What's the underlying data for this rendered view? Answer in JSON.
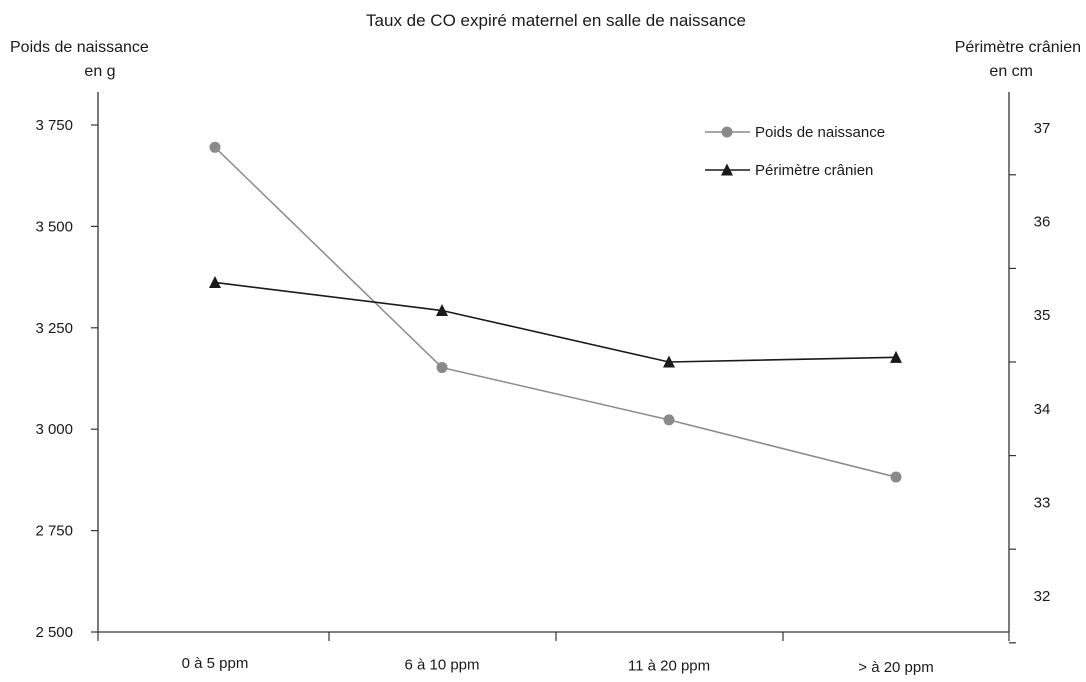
{
  "chart_data": {
    "type": "line",
    "title": "Taux de CO expiré maternel en salle de naissance",
    "ylabel_left": [
      "Poids de naissance",
      "en g"
    ],
    "ylabel_right": [
      "Périmètre crânien",
      "en cm"
    ],
    "categories": [
      "0 à 5 ppm",
      "6 à 10 ppm",
      "11 à 20 ppm",
      "> à 20 ppm"
    ],
    "y_left": {
      "min": 2500,
      "max": 3750,
      "ticks": [
        2500,
        2750,
        3000,
        3250,
        3500,
        3750
      ],
      "tick_labels": [
        "2 500",
        "2 750",
        "3 000",
        "3 250",
        "3 500",
        "3 750"
      ]
    },
    "y_right": {
      "min": 32,
      "max": 37,
      "ticks": [
        32,
        33,
        34,
        35,
        36,
        37
      ],
      "tick_labels": [
        "32",
        "33",
        "34",
        "35",
        "36",
        "37"
      ]
    },
    "series": [
      {
        "name": "Poids de naissance",
        "axis": "left",
        "marker": "circle",
        "color": "#8a8a8a",
        "values": [
          3695,
          3152,
          3023,
          2882
        ]
      },
      {
        "name": "Périmètre crânien",
        "axis": "right",
        "marker": "triangle",
        "color": "#1a1a1a",
        "values": [
          35.35,
          35.05,
          34.5,
          34.55
        ]
      }
    ],
    "legend_position": "top-right",
    "grid": false
  }
}
